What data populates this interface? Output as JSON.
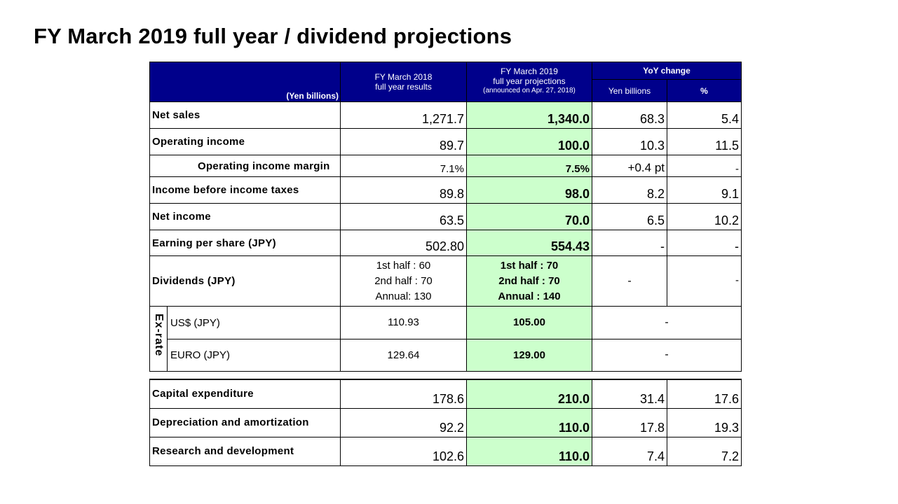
{
  "title": "FY March 2019 full year / dividend projections",
  "header": {
    "unit": "(Yen billions)",
    "fy2018_line1": "FY March 2018",
    "fy2018_line2": "full year results",
    "fy2019_line1": "FY March 2019",
    "fy2019_line2": "full year projections",
    "fy2019_line3": "(announced on Apr. 27, 2018)",
    "yoy": "YoY change",
    "yoy_yen": "Yen billions",
    "yoy_pct": "%"
  },
  "rows": {
    "net_sales": {
      "label": "Net sales",
      "fy2018": "1,271.7",
      "fy2019": "1,340.0",
      "yen": "68.3",
      "pct": "5.4"
    },
    "operating_income": {
      "label": "Operating income",
      "fy2018": "89.7",
      "fy2019": "100.0",
      "yen": "10.3",
      "pct": "11.5"
    },
    "operating_margin": {
      "label": "Operating income margin",
      "fy2018": "7.1%",
      "fy2019": "7.5%",
      "yen": "+0.4 pt",
      "pct": "-"
    },
    "income_before_taxes": {
      "label": "Income before income taxes",
      "fy2018": "89.8",
      "fy2019": "98.0",
      "yen": "8.2",
      "pct": "9.1"
    },
    "net_income": {
      "label": "Net income",
      "fy2018": "63.5",
      "fy2019": "70.0",
      "yen": "6.5",
      "pct": "10.2"
    },
    "eps": {
      "label": "Earning per share (JPY)",
      "fy2018": "502.80",
      "fy2019": "554.43",
      "yen": "-",
      "pct": "-"
    },
    "dividends": {
      "label": "Dividends (JPY)",
      "fy2018": [
        "1st half : 60",
        "2nd half : 70",
        "Annual: 130"
      ],
      "fy2019": [
        "1st half : 70",
        "2nd half : 70",
        "Annual : 140"
      ],
      "yen": "-",
      "pct": "-"
    }
  },
  "exrate": {
    "label": "Ex-rate",
    "usd": {
      "label": "US$ (JPY)",
      "fy2018": "110.93",
      "fy2019": "105.00",
      "yoy": "-"
    },
    "euro": {
      "label": "EURO (JPY)",
      "fy2018": "129.64",
      "fy2019": "129.00",
      "yoy": "-"
    }
  },
  "investments": {
    "capex": {
      "label": "Capital expenditure",
      "fy2018": "178.6",
      "fy2019": "210.0",
      "yen": "31.4",
      "pct": "17.6"
    },
    "depreciation": {
      "label": "Depreciation and amortization",
      "fy2018": "92.2",
      "fy2019": "110.0",
      "yen": "17.8",
      "pct": "19.3"
    },
    "rnd": {
      "label": "Research and development",
      "fy2018": "102.6",
      "fy2019": "110.0",
      "yen": "7.4",
      "pct": "7.2"
    }
  },
  "colors": {
    "header_bg": "#00008b",
    "projection_bg": "#ccffcc"
  }
}
